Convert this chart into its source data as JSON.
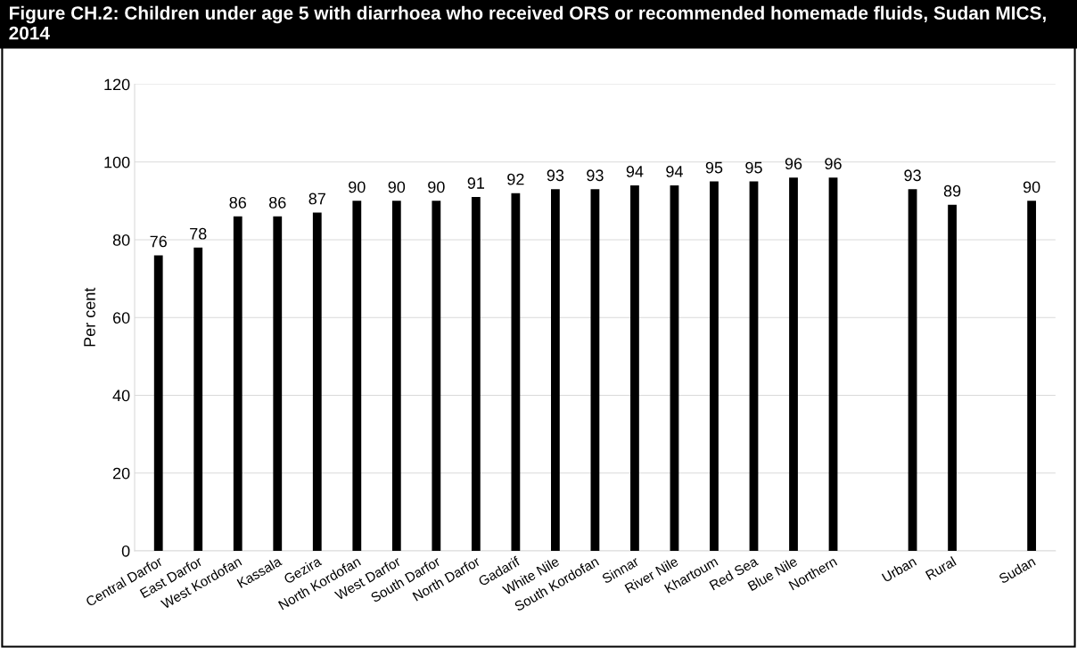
{
  "chart_data": {
    "type": "bar",
    "title": "Figure CH.2: Children under age 5 with diarrhoea who received ORS or recommended homemade fluids, Sudan MICS, 2014",
    "ylabel": "Per cent",
    "categories": [
      "Central Darfor",
      "East Darfor",
      "West Kordofan",
      "Kassala",
      "Gezira",
      "North Kordofan",
      "West Darfor",
      "South Darfor",
      "North Darfor",
      "Gadarif",
      "White Nile",
      "South Kordofan",
      "Sinnar",
      "River Nile",
      "Khartoum",
      "Red Sea",
      "Blue Nile",
      "Northern",
      null,
      "Urban",
      "Rural",
      null,
      "Sudan"
    ],
    "values": [
      76,
      78,
      86,
      86,
      87,
      90,
      90,
      90,
      91,
      92,
      93,
      93,
      94,
      94,
      95,
      95,
      96,
      96,
      null,
      93,
      89,
      null,
      90
    ],
    "color": "#000000",
    "data_labels": true,
    "ylim": [
      0,
      120
    ],
    "yticks": [
      0,
      20,
      40,
      60,
      80,
      100,
      120
    ],
    "grid": "y"
  }
}
